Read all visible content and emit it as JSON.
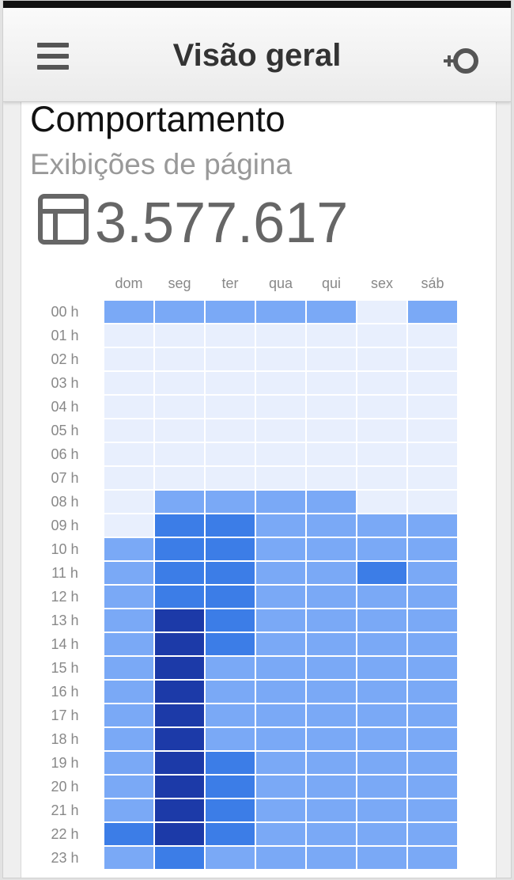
{
  "appbar": {
    "title": "Visão geral",
    "menu_icon": "hamburger-menu-icon",
    "add_icon": "add-widget-icon"
  },
  "section": {
    "title": "Comportamento",
    "metric_name": "Exibições de página",
    "metric_icon": "page-layout-icon",
    "metric_value": "3.577.617"
  },
  "heatmap": {
    "days": [
      "dom",
      "seg",
      "ter",
      "qua",
      "qui",
      "sex",
      "sáb"
    ],
    "hours": [
      "00 h",
      "01 h",
      "02 h",
      "03 h",
      "04 h",
      "05 h",
      "06 h",
      "07 h",
      "08 h",
      "09 h",
      "10 h",
      "11 h",
      "12 h",
      "13 h",
      "14 h",
      "15 h",
      "16 h",
      "17 h",
      "18 h",
      "19 h",
      "20 h",
      "21 h",
      "22 h",
      "23 h"
    ],
    "levels": [
      [
        1,
        1,
        1,
        1,
        1,
        0,
        1
      ],
      [
        0,
        0,
        0,
        0,
        0,
        0,
        0
      ],
      [
        0,
        0,
        0,
        0,
        0,
        0,
        0
      ],
      [
        0,
        0,
        0,
        0,
        0,
        0,
        0
      ],
      [
        0,
        0,
        0,
        0,
        0,
        0,
        0
      ],
      [
        0,
        0,
        0,
        0,
        0,
        0,
        0
      ],
      [
        0,
        0,
        0,
        0,
        0,
        0,
        0
      ],
      [
        0,
        0,
        0,
        0,
        0,
        0,
        0
      ],
      [
        0,
        1,
        1,
        1,
        1,
        0,
        0
      ],
      [
        0,
        2,
        2,
        1,
        1,
        1,
        1
      ],
      [
        1,
        2,
        2,
        1,
        1,
        1,
        1
      ],
      [
        1,
        2,
        2,
        1,
        1,
        2,
        1
      ],
      [
        1,
        2,
        2,
        1,
        1,
        1,
        1
      ],
      [
        1,
        3,
        2,
        1,
        1,
        1,
        1
      ],
      [
        1,
        3,
        2,
        1,
        1,
        1,
        1
      ],
      [
        1,
        3,
        1,
        1,
        1,
        1,
        1
      ],
      [
        1,
        3,
        1,
        1,
        1,
        1,
        1
      ],
      [
        1,
        3,
        1,
        1,
        1,
        1,
        1
      ],
      [
        1,
        3,
        1,
        1,
        1,
        1,
        1
      ],
      [
        1,
        3,
        2,
        1,
        1,
        1,
        1
      ],
      [
        1,
        3,
        2,
        1,
        1,
        1,
        1
      ],
      [
        1,
        3,
        2,
        1,
        1,
        1,
        1
      ],
      [
        2,
        3,
        2,
        1,
        1,
        1,
        1
      ],
      [
        1,
        2,
        1,
        1,
        1,
        1,
        1
      ]
    ],
    "colors": [
      "#e8effd",
      "#7aa9f6",
      "#3c7de7",
      "#1c3aa8"
    ]
  }
}
